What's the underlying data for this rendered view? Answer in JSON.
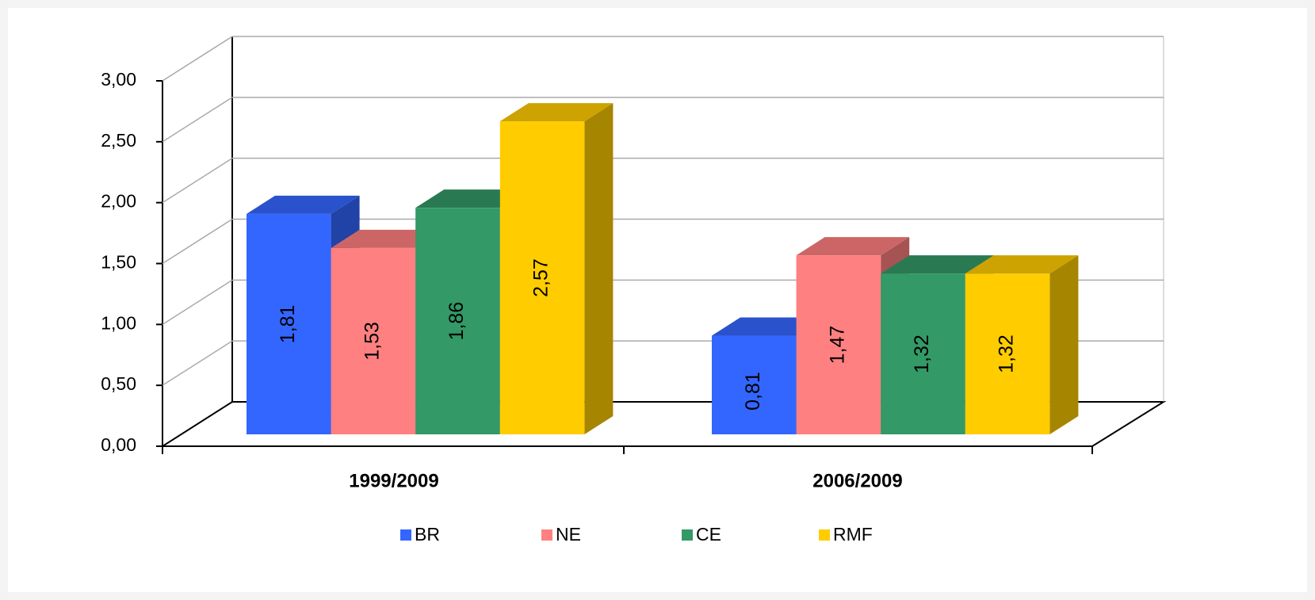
{
  "chart_data": {
    "type": "bar3d",
    "categories": [
      "1999/2009",
      "2006/2009"
    ],
    "series": [
      {
        "name": "BR",
        "color": "#3366ff",
        "values": [
          1.81,
          0.81
        ],
        "value_labels": [
          "1,81",
          "0,81"
        ]
      },
      {
        "name": "NE",
        "color": "#ff8080",
        "values": [
          1.53,
          1.47
        ],
        "value_labels": [
          "1,53",
          "1,47"
        ]
      },
      {
        "name": "CE",
        "color": "#339966",
        "values": [
          1.86,
          1.32
        ],
        "value_labels": [
          "1,86",
          "1,32"
        ]
      },
      {
        "name": "RMF",
        "color": "#ffcc00",
        "values": [
          2.57,
          1.32
        ],
        "value_labels": [
          "2,57",
          "1,32"
        ]
      }
    ],
    "ylim": [
      0,
      3
    ],
    "yticks": [
      {
        "value": 0,
        "label": "0,00"
      },
      {
        "value": 0.5,
        "label": "0,50"
      },
      {
        "value": 1,
        "label": "1,00"
      },
      {
        "value": 1.5,
        "label": "1,50"
      },
      {
        "value": 2,
        "label": "2,00"
      },
      {
        "value": 2.5,
        "label": "2,50"
      },
      {
        "value": 3,
        "label": "3,00"
      }
    ],
    "grid": true
  }
}
